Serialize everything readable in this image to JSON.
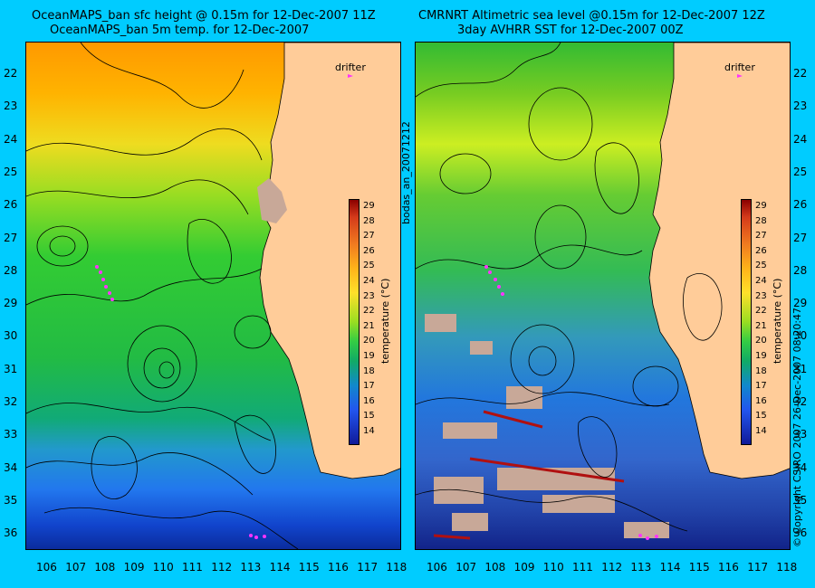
{
  "left_panel": {
    "title_line1": "OceanMAPS_ban sfc height @ 0.15m for 12-Dec-2007 11Z",
    "title_line2": "OceanMAPS_ban 5m temp. for 12-Dec-2007",
    "drifter_label": "drifter"
  },
  "right_panel": {
    "title_line1": "CMRNRT Altimetric sea level  @0.15m  for 12-Dec-2007 12Z",
    "title_line2": "3day AVHRR SST for 12-Dec-2007 00Z",
    "drifter_label": "drifter"
  },
  "center_vertical_label": "bodas_an_20071212",
  "right_vertical_label": "© Copyright CSIRO 2007   26-Dec-2007 08:20:47",
  "colorbar": {
    "label": "temperature (°C)",
    "ticks": [
      "29",
      "28",
      "27",
      "26",
      "25",
      "24",
      "23",
      "22",
      "21",
      "20",
      "19",
      "18",
      "17",
      "16",
      "15",
      "14"
    ]
  },
  "lat_ticks": [
    "22",
    "23",
    "24",
    "25",
    "26",
    "27",
    "28",
    "29",
    "30",
    "31",
    "32",
    "33",
    "34",
    "35",
    "36"
  ],
  "lon_ticks": [
    "106",
    "107",
    "108",
    "109",
    "110",
    "111",
    "112",
    "113",
    "114",
    "115",
    "116",
    "117",
    "118"
  ],
  "colors": {
    "background": "#00ccff",
    "land": "#ffcc99",
    "no_data": "#c8a898",
    "drifter": "#ff33ff"
  }
}
